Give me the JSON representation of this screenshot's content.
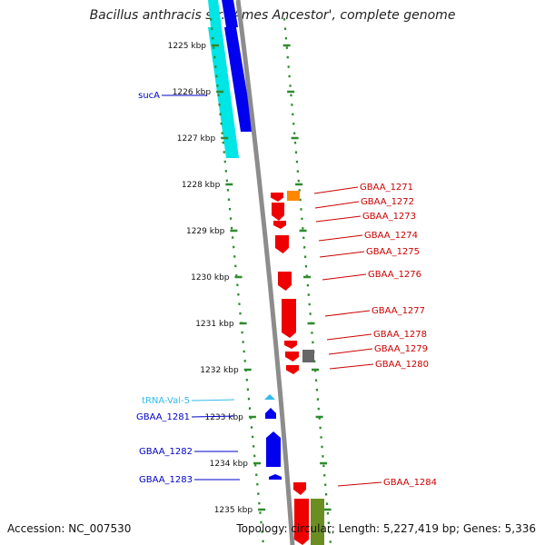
{
  "title": "Bacillus anthracis str. 'Ames Ancestor', complete genome",
  "accession": "Accession: NC_007530",
  "topology": "Topology: circular; Length: 5,227,419 bp; Genes: 5,336",
  "colors": {
    "background": "#ffffff",
    "backbone": "#8c8c8c",
    "tick_dots": "#2e8b2e",
    "forward_label": "#0000cc",
    "reverse_label": "#cc0000",
    "trna": "#33bbee",
    "cyan_track": "#00e5e5",
    "blue_gene": "#0000ee",
    "red_gene": "#ee0000",
    "orange_gene": "#ff8800",
    "gray_gene": "#666666",
    "olive_gene": "#6b8e23"
  },
  "ticks": [
    {
      "label": "1225 kbp"
    },
    {
      "label": "1226 kbp"
    },
    {
      "label": "1227 kbp"
    },
    {
      "label": "1228 kbp"
    },
    {
      "label": "1229 kbp"
    },
    {
      "label": "1230 kbp"
    },
    {
      "label": "1231 kbp"
    },
    {
      "label": "1232 kbp"
    },
    {
      "label": "1233 kbp"
    },
    {
      "label": "1234 kbp"
    },
    {
      "label": "1235 kbp"
    }
  ],
  "left_labels": [
    {
      "text": "sucA",
      "color": "#0000cc"
    },
    {
      "text": "tRNA-Val-5",
      "color": "#33bbee"
    },
    {
      "text": "GBAA_1281",
      "color": "#0000cc"
    },
    {
      "text": "GBAA_1282",
      "color": "#0000cc"
    },
    {
      "text": "GBAA_1283",
      "color": "#0000cc"
    }
  ],
  "right_labels": [
    {
      "text": "GBAA_1271"
    },
    {
      "text": "GBAA_1272"
    },
    {
      "text": "GBAA_1273"
    },
    {
      "text": "GBAA_1274"
    },
    {
      "text": "GBAA_1275"
    },
    {
      "text": "GBAA_1276"
    },
    {
      "text": "GBAA_1277"
    },
    {
      "text": "GBAA_1278"
    },
    {
      "text": "GBAA_1279"
    },
    {
      "text": "GBAA_1280"
    },
    {
      "text": "GBAA_1284"
    }
  ]
}
